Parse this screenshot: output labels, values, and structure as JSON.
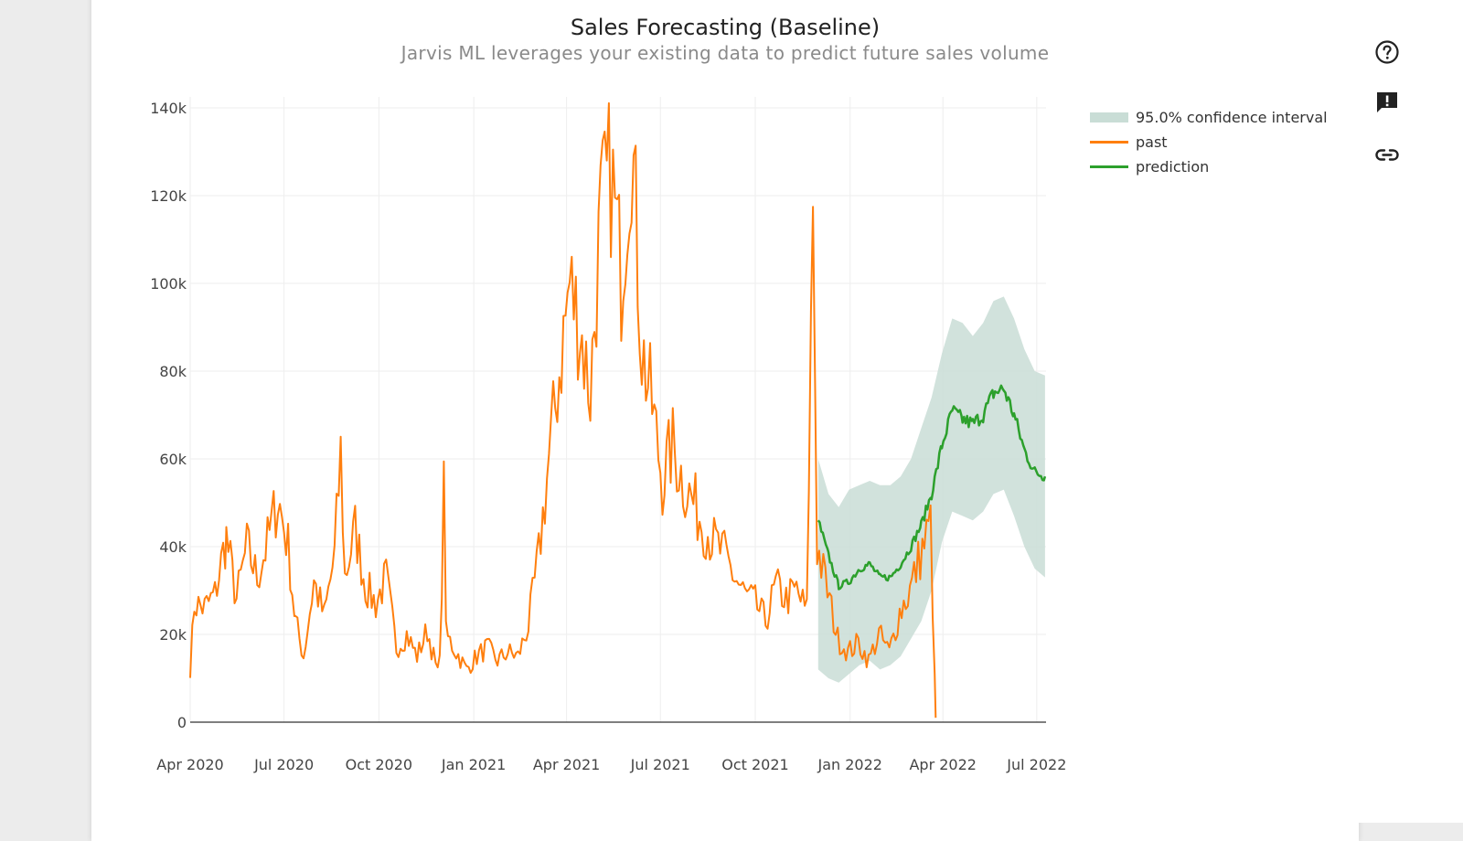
{
  "chart_data": {
    "type": "line",
    "title": "Sales Forecasting (Baseline)",
    "subtitle": "Jarvis ML leverages your existing data to predict future sales volume",
    "x_ticks": [
      "Apr 2020",
      "Jul 2020",
      "Oct 2020",
      "Jan 2021",
      "Apr 2021",
      "Jul 2021",
      "Oct 2021",
      "Jan 2022",
      "Apr 2022",
      "Jul 2022"
    ],
    "y_ticks": [
      "0",
      "20k",
      "40k",
      "60k",
      "80k",
      "100k",
      "120k",
      "140k"
    ],
    "xlim": [
      "2020-04-01",
      "2022-07-10"
    ],
    "ylim": [
      0,
      140000
    ],
    "grid": true,
    "legend_position": "top-right",
    "colors": {
      "past": "#ff7f0e",
      "prediction": "#2ca02c",
      "confidence_interval": "#c9ddd6"
    },
    "series": [
      {
        "name": "past",
        "points": [
          [
            "2020-04-01",
            12000
          ],
          [
            "2020-04-05",
            27000
          ],
          [
            "2020-04-15",
            26000
          ],
          [
            "2020-04-25",
            29000
          ],
          [
            "2020-05-06",
            42000
          ],
          [
            "2020-05-16",
            28000
          ],
          [
            "2020-05-26",
            40000
          ],
          [
            "2020-06-05",
            33000
          ],
          [
            "2020-06-15",
            41000
          ],
          [
            "2020-06-25",
            51000
          ],
          [
            "2020-07-05",
            40000
          ],
          [
            "2020-07-12",
            23000
          ],
          [
            "2020-07-20",
            15000
          ],
          [
            "2020-07-30",
            32000
          ],
          [
            "2020-08-09",
            24000
          ],
          [
            "2020-08-19",
            38000
          ],
          [
            "2020-08-25",
            61000
          ],
          [
            "2020-08-29",
            33000
          ],
          [
            "2020-09-08",
            44000
          ],
          [
            "2020-09-18",
            31000
          ],
          [
            "2020-09-28",
            27000
          ],
          [
            "2020-10-08",
            33000
          ],
          [
            "2020-10-18",
            17000
          ],
          [
            "2020-10-28",
            20000
          ],
          [
            "2020-11-07",
            15000
          ],
          [
            "2020-11-17",
            21000
          ],
          [
            "2020-11-27",
            11000
          ],
          [
            "2020-12-01",
            25000
          ],
          [
            "2020-12-03",
            66000
          ],
          [
            "2020-12-05",
            20000
          ],
          [
            "2020-12-15",
            16000
          ],
          [
            "2020-12-25",
            12000
          ],
          [
            "2021-01-04",
            15000
          ],
          [
            "2021-01-14",
            17000
          ],
          [
            "2021-01-24",
            14000
          ],
          [
            "2021-02-03",
            16000
          ],
          [
            "2021-02-13",
            15000
          ],
          [
            "2021-02-23",
            22000
          ],
          [
            "2021-03-05",
            38000
          ],
          [
            "2021-03-15",
            60000
          ],
          [
            "2021-03-25",
            80000
          ],
          [
            "2021-04-04",
            100000
          ],
          [
            "2021-04-14",
            90000
          ],
          [
            "2021-04-24",
            75000
          ],
          [
            "2021-05-04",
            115000
          ],
          [
            "2021-05-14",
            125000
          ],
          [
            "2021-05-24",
            102000
          ],
          [
            "2021-06-03",
            135000
          ],
          [
            "2021-06-13",
            85000
          ],
          [
            "2021-06-23",
            72000
          ],
          [
            "2021-07-03",
            55000
          ],
          [
            "2021-07-13",
            63000
          ],
          [
            "2021-07-23",
            55000
          ],
          [
            "2021-08-02",
            50000
          ],
          [
            "2021-08-12",
            45000
          ],
          [
            "2021-08-22",
            41000
          ],
          [
            "2021-09-01",
            38000
          ],
          [
            "2021-09-11",
            33000
          ],
          [
            "2021-09-21",
            29000
          ],
          [
            "2021-10-01",
            27000
          ],
          [
            "2021-10-11",
            23000
          ],
          [
            "2021-10-21",
            31000
          ],
          [
            "2021-10-31",
            28000
          ],
          [
            "2021-11-10",
            30000
          ],
          [
            "2021-11-20",
            25000
          ],
          [
            "2021-11-26",
            120000
          ],
          [
            "2021-11-30",
            40000
          ],
          [
            "2021-12-10",
            30000
          ],
          [
            "2021-12-20",
            19000
          ],
          [
            "2021-12-30",
            16000
          ],
          [
            "2022-01-09",
            18000
          ],
          [
            "2022-01-19",
            14000
          ],
          [
            "2022-01-29",
            20000
          ],
          [
            "2022-02-08",
            16000
          ],
          [
            "2022-02-18",
            25000
          ],
          [
            "2022-02-28",
            30000
          ],
          [
            "2022-03-10",
            38000
          ],
          [
            "2022-03-20",
            45000
          ],
          [
            "2022-03-25",
            1000
          ]
        ]
      },
      {
        "name": "prediction",
        "points": [
          [
            "2021-12-01",
            46000
          ],
          [
            "2021-12-11",
            38000
          ],
          [
            "2021-12-21",
            31000
          ],
          [
            "2021-12-31",
            32000
          ],
          [
            "2022-01-10",
            35000
          ],
          [
            "2022-01-20",
            36000
          ],
          [
            "2022-01-30",
            33000
          ],
          [
            "2022-02-09",
            33000
          ],
          [
            "2022-02-19",
            36000
          ],
          [
            "2022-03-01",
            40000
          ],
          [
            "2022-03-11",
            45000
          ],
          [
            "2022-03-21",
            52000
          ],
          [
            "2022-03-31",
            63000
          ],
          [
            "2022-04-10",
            71000
          ],
          [
            "2022-04-20",
            69000
          ],
          [
            "2022-04-30",
            68000
          ],
          [
            "2022-05-10",
            70000
          ],
          [
            "2022-05-20",
            75000
          ],
          [
            "2022-05-30",
            76000
          ],
          [
            "2022-06-09",
            70000
          ],
          [
            "2022-06-19",
            62000
          ],
          [
            "2022-06-29",
            57000
          ],
          [
            "2022-07-09",
            56000
          ]
        ]
      },
      {
        "name": "95.0% confidence interval",
        "band": [
          [
            "2021-12-01",
            12000,
            60000
          ],
          [
            "2021-12-11",
            10000,
            52000
          ],
          [
            "2021-12-21",
            9000,
            49000
          ],
          [
            "2021-12-31",
            11000,
            53000
          ],
          [
            "2022-01-10",
            13000,
            54000
          ],
          [
            "2022-01-20",
            14000,
            55000
          ],
          [
            "2022-01-30",
            12000,
            54000
          ],
          [
            "2022-02-09",
            13000,
            54000
          ],
          [
            "2022-02-19",
            15000,
            56000
          ],
          [
            "2022-03-01",
            19000,
            60000
          ],
          [
            "2022-03-11",
            23000,
            67000
          ],
          [
            "2022-03-21",
            30000,
            74000
          ],
          [
            "2022-03-31",
            41000,
            84000
          ],
          [
            "2022-04-10",
            48000,
            92000
          ],
          [
            "2022-04-20",
            47000,
            91000
          ],
          [
            "2022-04-30",
            46000,
            88000
          ],
          [
            "2022-05-10",
            48000,
            91000
          ],
          [
            "2022-05-20",
            52000,
            96000
          ],
          [
            "2022-05-30",
            53000,
            97000
          ],
          [
            "2022-06-09",
            47000,
            92000
          ],
          [
            "2022-06-19",
            40000,
            85000
          ],
          [
            "2022-06-29",
            35000,
            80000
          ],
          [
            "2022-07-09",
            33000,
            79000
          ]
        ]
      }
    ]
  },
  "toolbar": {
    "icons": [
      "help-circle-icon",
      "report-feedback-icon",
      "link-icon"
    ]
  }
}
